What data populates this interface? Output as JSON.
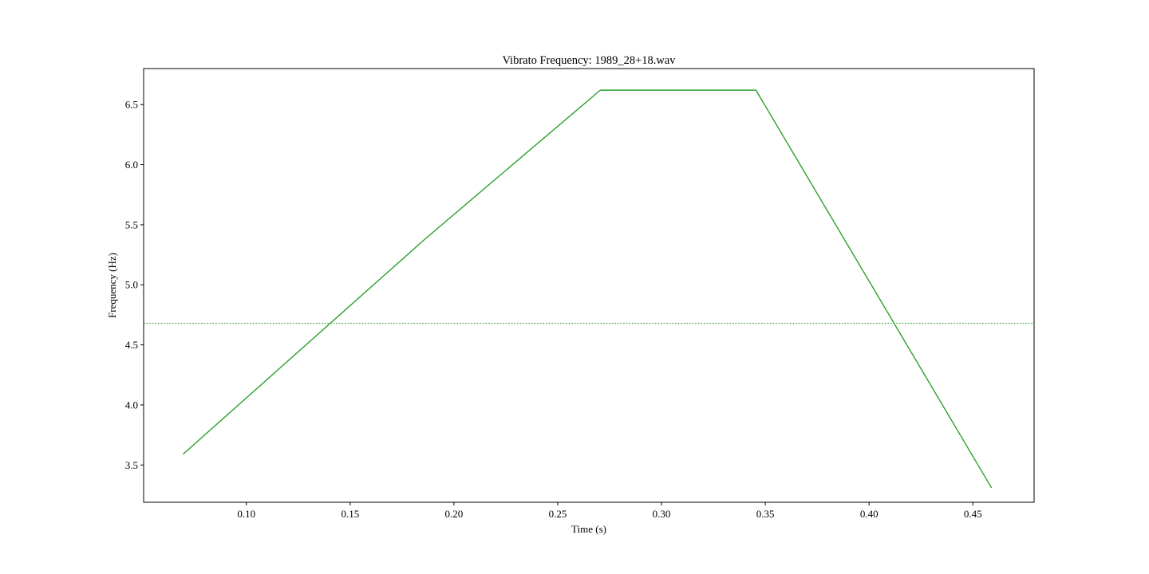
{
  "chart_data": {
    "type": "line",
    "title": "Vibrato Frequency: 1989_28+18.wav",
    "xlabel": "Time (s)",
    "ylabel": "Frequency (Hz)",
    "xlim": [
      0.0505,
      0.4795
    ],
    "ylim": [
      3.19,
      6.8
    ],
    "x_ticks": [
      0.1,
      0.15,
      0.2,
      0.25,
      0.3,
      0.35,
      0.4,
      0.45
    ],
    "x_tick_labels": [
      "0.10",
      "0.15",
      "0.20",
      "0.25",
      "0.30",
      "0.35",
      "0.40",
      "0.45"
    ],
    "y_ticks": [
      3.5,
      4.0,
      4.5,
      5.0,
      5.5,
      6.0,
      6.5
    ],
    "y_tick_labels": [
      "3.5",
      "4.0",
      "4.5",
      "5.0",
      "5.5",
      "6.0",
      "6.5"
    ],
    "grid": false,
    "series": [
      {
        "color": "#2ca02c",
        "style": "solid",
        "x": [
          0.0695,
          0.186,
          0.2705,
          0.3455,
          0.459
        ],
        "y": [
          3.59,
          5.38,
          6.62,
          6.62,
          3.31
        ]
      },
      {
        "color": "#2ca02c",
        "style": "dotted",
        "type": "horizontal-reference",
        "y_value": 4.68
      }
    ]
  }
}
